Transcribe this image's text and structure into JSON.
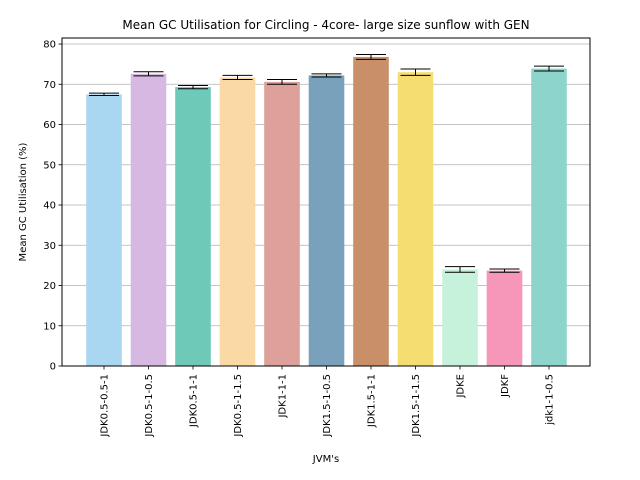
{
  "chart_data": {
    "type": "bar",
    "title": "Mean GC Utilisation for Circling - 4core- large size sunflow with GEN",
    "xlabel": "JVM's",
    "ylabel": "Mean GC Utilisation (%)",
    "ylim": [
      0,
      81.5
    ],
    "yticks": [
      0,
      10,
      20,
      30,
      40,
      50,
      60,
      70,
      80
    ],
    "grid": "horizontal",
    "categories": [
      "JDK0.5-0.5-1",
      "JDK0.5-1-0.5",
      "JDK0.5-1-1",
      "JDK0.5-1-1.5",
      "JDK1-1-1",
      "JDK1.5-1-0.5",
      "JDK1.5-1-1",
      "JDK1.5-1-1.5",
      "JDKE",
      "JDKF",
      "jdk1-1-0.5"
    ],
    "values": [
      67.5,
      72.6,
      69.3,
      71.7,
      70.6,
      72.2,
      76.8,
      73.0,
      24.0,
      23.7,
      73.9
    ],
    "errors": [
      0.3,
      0.5,
      0.4,
      0.5,
      0.6,
      0.4,
      0.6,
      0.8,
      0.7,
      0.4,
      0.6
    ],
    "colors": [
      "#a9d6f0",
      "#d6b8e2",
      "#6fc9b8",
      "#fad9a4",
      "#dea09a",
      "#7aa1bc",
      "#c98f68",
      "#f6dd72",
      "#c6f2dc",
      "#f696b8",
      "#8dd5cc"
    ]
  }
}
